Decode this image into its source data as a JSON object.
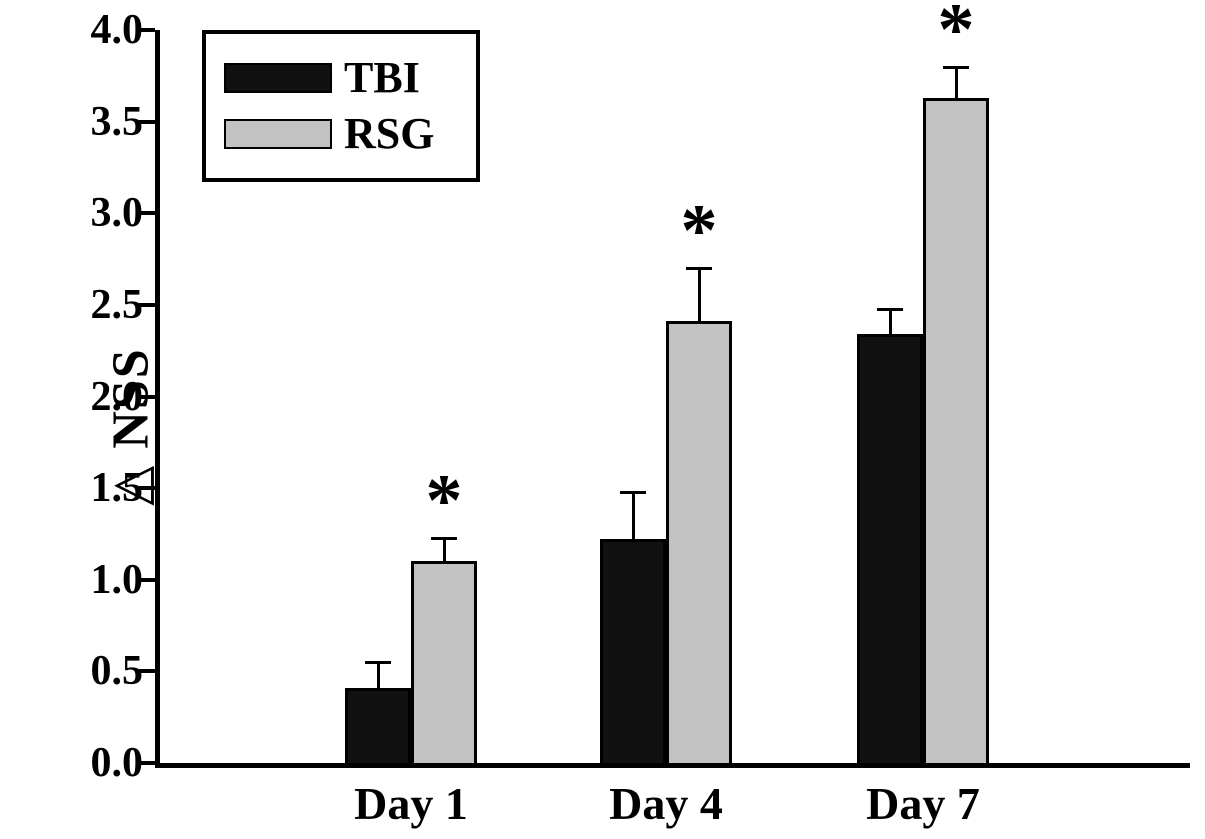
{
  "chart_data": {
    "type": "bar",
    "title": "",
    "xlabel": "",
    "ylabel": "△ NSS",
    "categories": [
      "Day 1",
      "Day 4",
      "Day 7"
    ],
    "series": [
      {
        "name": "TBI",
        "color": "#111111",
        "values": [
          0.41,
          1.22,
          2.34
        ],
        "errors": [
          0.14,
          0.26,
          0.14
        ]
      },
      {
        "name": "RSG",
        "color": "#c2c2c2",
        "values": [
          1.1,
          2.41,
          3.63
        ],
        "errors": [
          0.13,
          0.29,
          0.17
        ]
      }
    ],
    "significance": {
      "symbol": "*",
      "on_series": "RSG",
      "categories": [
        "Day 1",
        "Day 4",
        "Day 7"
      ]
    },
    "ylim": [
      0,
      4.0
    ],
    "ytick_step": 0.5,
    "ytick_labels": [
      "0.0",
      "0.5",
      "1.0",
      "1.5",
      "2.0",
      "2.5",
      "3.0",
      "3.5",
      "4.0"
    ],
    "grid": false,
    "legend_position": "top-left",
    "colors": {
      "axis": "#000000",
      "background": "#ffffff",
      "tbi_bar": "#111111",
      "rsg_bar": "#c2c2c2"
    }
  }
}
